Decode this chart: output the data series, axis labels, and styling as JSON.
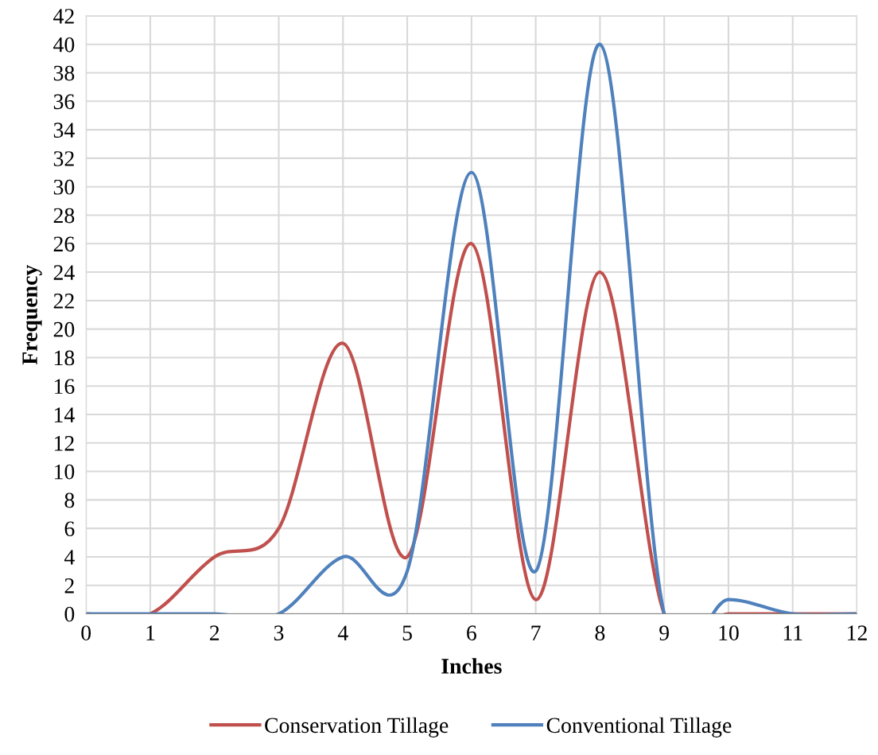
{
  "chart_data": {
    "type": "line",
    "xlabel": "Inches",
    "ylabel": "Frequency",
    "x": [
      0,
      1,
      2,
      3,
      4,
      5,
      6,
      7,
      8,
      9,
      10,
      11,
      12
    ],
    "series": [
      {
        "name": "Conservation Tillage",
        "color": "#c0504d",
        "values": [
          0,
          0,
          4,
          6,
          19,
          4,
          26,
          1,
          24,
          0,
          0,
          0,
          0
        ]
      },
      {
        "name": "Conventional Tillage",
        "color": "#4f81bd",
        "values": [
          0,
          0,
          0,
          0,
          4,
          3,
          31,
          3,
          40,
          0,
          1,
          0,
          0
        ]
      }
    ],
    "xlim": [
      0,
      12
    ],
    "xticks": [
      0,
      1,
      2,
      3,
      4,
      5,
      6,
      7,
      8,
      9,
      10,
      11,
      12
    ],
    "ylim": [
      0,
      42
    ],
    "yticks": [
      0,
      2,
      4,
      6,
      8,
      10,
      12,
      14,
      16,
      18,
      20,
      22,
      24,
      26,
      28,
      30,
      32,
      34,
      36,
      38,
      40,
      42
    ],
    "grid": true,
    "legend": "bottom",
    "marker": "none",
    "line_style": "solid"
  }
}
